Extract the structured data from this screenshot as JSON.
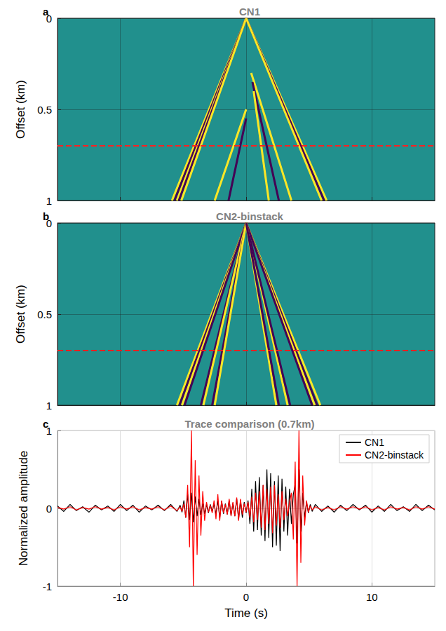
{
  "chart_data": [
    {
      "type": "line",
      "title": "CN1",
      "panel": "a",
      "ylabel": "Offset (km)",
      "xlim": [
        -15,
        15
      ],
      "xticks": [
        -10,
        0,
        10
      ],
      "ylim": [
        0,
        1
      ],
      "yticks": [
        0,
        0.5,
        1
      ],
      "tick_labels": "y",
      "grid": true,
      "series": [
        {
          "color": "#fde725",
          "x": [
            0,
            -5.9
          ],
          "values": [
            0,
            1
          ]
        },
        {
          "color": "#440154",
          "x": [
            0,
            -5.7
          ],
          "values": [
            0,
            1
          ]
        },
        {
          "color": "#fde725",
          "x": [
            0,
            -5.5
          ],
          "values": [
            0,
            1
          ]
        },
        {
          "color": "#440154",
          "x": [
            0,
            -5.35
          ],
          "values": [
            0,
            1
          ]
        },
        {
          "color": "#fde725",
          "x": [
            0,
            -5.15
          ],
          "values": [
            0,
            1
          ]
        },
        {
          "color": "#fde725",
          "x": [
            0,
            -2.5
          ],
          "values": [
            0.5,
            1
          ]
        },
        {
          "color": "#440154",
          "x": [
            0,
            -1.4
          ],
          "values": [
            0.55,
            1
          ]
        },
        {
          "color": "#fde725",
          "x": [
            0,
            6.4
          ],
          "values": [
            0,
            1
          ]
        },
        {
          "color": "#440154",
          "x": [
            0,
            6.2
          ],
          "values": [
            0,
            1
          ]
        },
        {
          "color": "#fde725",
          "x": [
            0,
            6.0
          ],
          "values": [
            0,
            1
          ]
        },
        {
          "color": "#fde725",
          "x": [
            0.4,
            3.6
          ],
          "values": [
            0.3,
            1
          ]
        },
        {
          "color": "#440154",
          "x": [
            0.5,
            2.6
          ],
          "values": [
            0.35,
            1
          ]
        },
        {
          "color": "#fde725",
          "x": [
            0.6,
            1.8
          ],
          "values": [
            0.4,
            1
          ]
        },
        {
          "color": "#ff2020",
          "line_style": "dashed",
          "x": [
            -15,
            15
          ],
          "values": [
            0.7,
            0.7
          ]
        }
      ]
    },
    {
      "type": "line",
      "title": "CN2-binstack",
      "panel": "b",
      "ylabel": "Offset (km)",
      "xlim": [
        -15,
        15
      ],
      "xticks": [
        -10,
        0,
        10
      ],
      "ylim": [
        0,
        1
      ],
      "yticks": [
        0,
        0.5,
        1
      ],
      "tick_labels": "y",
      "grid": true,
      "series": [
        {
          "color": "#fde725",
          "x": [
            0,
            -5.5
          ],
          "values": [
            0,
            1
          ]
        },
        {
          "color": "#440154",
          "x": [
            0,
            -5.3
          ],
          "values": [
            0,
            1
          ]
        },
        {
          "color": "#fde725",
          "x": [
            0,
            -5.1
          ],
          "values": [
            0,
            1
          ]
        },
        {
          "color": "#440154",
          "x": [
            0,
            -4.9
          ],
          "values": [
            0,
            1
          ]
        },
        {
          "color": "#440154",
          "x": [
            0,
            -3.6
          ],
          "values": [
            0,
            1
          ]
        },
        {
          "color": "#fde725",
          "x": [
            0,
            -3.4
          ],
          "values": [
            0,
            1
          ]
        },
        {
          "color": "#440154",
          "x": [
            0,
            -2.7
          ],
          "values": [
            0,
            1
          ]
        },
        {
          "color": "#fde725",
          "x": [
            0,
            -2.5
          ],
          "values": [
            0,
            1
          ]
        },
        {
          "color": "#fde725",
          "x": [
            0,
            5.9
          ],
          "values": [
            0,
            1
          ]
        },
        {
          "color": "#440154",
          "x": [
            0,
            5.65
          ],
          "values": [
            0,
            1
          ]
        },
        {
          "color": "#fde725",
          "x": [
            0,
            5.45
          ],
          "values": [
            0,
            1
          ]
        },
        {
          "color": "#440154",
          "x": [
            0,
            5.25
          ],
          "values": [
            0,
            1
          ]
        },
        {
          "color": "#fde725",
          "x": [
            0,
            3.3
          ],
          "values": [
            0,
            1
          ]
        },
        {
          "color": "#440154",
          "x": [
            0,
            3.5
          ],
          "values": [
            0,
            1
          ]
        },
        {
          "color": "#fde725",
          "x": [
            0,
            2.4
          ],
          "values": [
            0,
            1
          ]
        },
        {
          "color": "#440154",
          "x": [
            0,
            2.6
          ],
          "values": [
            0,
            1
          ]
        },
        {
          "color": "#ff2020",
          "line_style": "dashed",
          "x": [
            -15,
            15
          ],
          "values": [
            0.7,
            0.7
          ]
        }
      ]
    },
    {
      "type": "line",
      "title": "Trace comparison (0.7km)",
      "panel": "c",
      "xlabel": "Time (s)",
      "ylabel": "Normalized amplitude",
      "xlim": [
        -15,
        15
      ],
      "xticks": [
        -10,
        0,
        10
      ],
      "ylim": [
        -1,
        1
      ],
      "yticks": [
        -1,
        0,
        1
      ],
      "grid": true,
      "legend": "upper right",
      "x": [
        -15,
        -14.5,
        -14,
        -13.5,
        -13,
        -12.5,
        -12,
        -11.5,
        -11,
        -10.5,
        -10,
        -9.5,
        -9,
        -8.5,
        -8,
        -7.5,
        -7,
        -6.5,
        -6,
        -5.5,
        -5.25,
        -5.1,
        -4.95,
        -4.8,
        -4.65,
        -4.5,
        -4.35,
        -4.2,
        -4.05,
        -3.9,
        -3.75,
        -3.6,
        -3.45,
        -3.3,
        -3.15,
        -3.0,
        -2.85,
        -2.7,
        -2.55,
        -2.4,
        -2.25,
        -2.1,
        -1.95,
        -1.8,
        -1.65,
        -1.5,
        -1.35,
        -1.2,
        -1.05,
        -0.9,
        -0.75,
        -0.6,
        -0.45,
        -0.3,
        -0.15,
        0,
        0.15,
        0.3,
        0.45,
        0.6,
        0.75,
        0.9,
        1.05,
        1.2,
        1.35,
        1.5,
        1.65,
        1.8,
        1.95,
        2.1,
        2.25,
        2.4,
        2.55,
        2.7,
        2.85,
        3.0,
        3.15,
        3.3,
        3.45,
        3.6,
        3.75,
        3.9,
        4.05,
        4.2,
        4.35,
        4.5,
        4.65,
        4.8,
        4.95,
        5.1,
        5.25,
        5.5,
        6,
        6.5,
        7,
        7.5,
        8,
        8.5,
        9,
        9.5,
        10,
        10.5,
        11,
        11.5,
        12,
        12.5,
        13,
        13.5,
        14,
        14.5,
        15
      ],
      "series": [
        {
          "name": "CN1",
          "color": "#000000",
          "values": [
            0.03,
            -0.04,
            0.05,
            -0.03,
            0.02,
            -0.05,
            0.04,
            -0.02,
            0.03,
            -0.04,
            0.05,
            -0.03,
            0.04,
            -0.05,
            0.03,
            -0.02,
            0.04,
            -0.03,
            0.05,
            -0.04,
            0.04,
            -0.05,
            0.1,
            -0.12,
            0.18,
            -0.15,
            0.2,
            -0.18,
            0.15,
            -0.1,
            0.12,
            -0.08,
            0.06,
            -0.07,
            0.05,
            -0.06,
            0.05,
            -0.04,
            0.06,
            -0.08,
            0.1,
            -0.12,
            0.09,
            -0.07,
            0.06,
            -0.08,
            0.1,
            -0.09,
            0.07,
            -0.1,
            0.12,
            -0.14,
            0.1,
            -0.12,
            0.08,
            -0.06,
            0.1,
            -0.2,
            0.25,
            -0.3,
            0.35,
            -0.28,
            0.4,
            -0.35,
            0.3,
            -0.42,
            0.5,
            -0.38,
            0.45,
            -0.5,
            0.35,
            -0.48,
            0.42,
            -0.55,
            0.38,
            -0.3,
            0.28,
            -0.35,
            0.25,
            -0.2,
            0.18,
            0.3,
            -0.45,
            0.5,
            -0.3,
            0.2,
            -0.12,
            0.08,
            -0.06,
            0.05,
            -0.04,
            0.05,
            -0.04,
            0.03,
            -0.05,
            0.04,
            -0.03,
            0.05,
            -0.02,
            0.04,
            -0.05,
            0.03,
            -0.04,
            0.05,
            -0.03,
            0.02,
            -0.04,
            0.05,
            -0.03,
            0.04,
            -0.02
          ]
        },
        {
          "name": "CN2-binstack",
          "color": "#ff0000",
          "values": [
            0.01,
            -0.01,
            0.02,
            -0.02,
            0.01,
            -0.01,
            0.02,
            -0.01,
            0.01,
            -0.02,
            0.02,
            -0.01,
            0.02,
            -0.02,
            0.01,
            -0.01,
            0.02,
            -0.02,
            0.03,
            -0.03,
            0.02,
            -0.04,
            0.06,
            -0.12,
            0.3,
            -0.5,
            1.0,
            -1.0,
            0.62,
            -0.6,
            0.42,
            -0.35,
            0.22,
            -0.16,
            0.08,
            -0.05,
            0.04,
            -0.06,
            0.1,
            -0.14,
            0.18,
            -0.16,
            0.1,
            -0.06,
            0.05,
            -0.08,
            0.12,
            -0.1,
            0.08,
            -0.1,
            0.14,
            -0.16,
            0.12,
            -0.08,
            0.06,
            -0.05,
            0.08,
            -0.12,
            0.15,
            -0.18,
            0.2,
            -0.15,
            0.22,
            -0.25,
            0.3,
            -0.28,
            0.25,
            -0.2,
            0.28,
            -0.32,
            0.3,
            -0.22,
            0.18,
            -0.25,
            0.22,
            -0.15,
            0.12,
            -0.1,
            0.08,
            0.2,
            -0.4,
            0.6,
            -1.0,
            1.0,
            -0.7,
            0.42,
            -0.22,
            0.1,
            -0.05,
            0.03,
            -0.02,
            0.02,
            -0.02,
            0.01,
            -0.02,
            0.02,
            -0.01,
            0.02,
            -0.01,
            0.02,
            -0.02,
            0.01,
            -0.02,
            0.02,
            -0.01,
            0.01,
            -0.02,
            0.02,
            -0.01,
            0.02,
            -0.01
          ]
        }
      ]
    }
  ]
}
